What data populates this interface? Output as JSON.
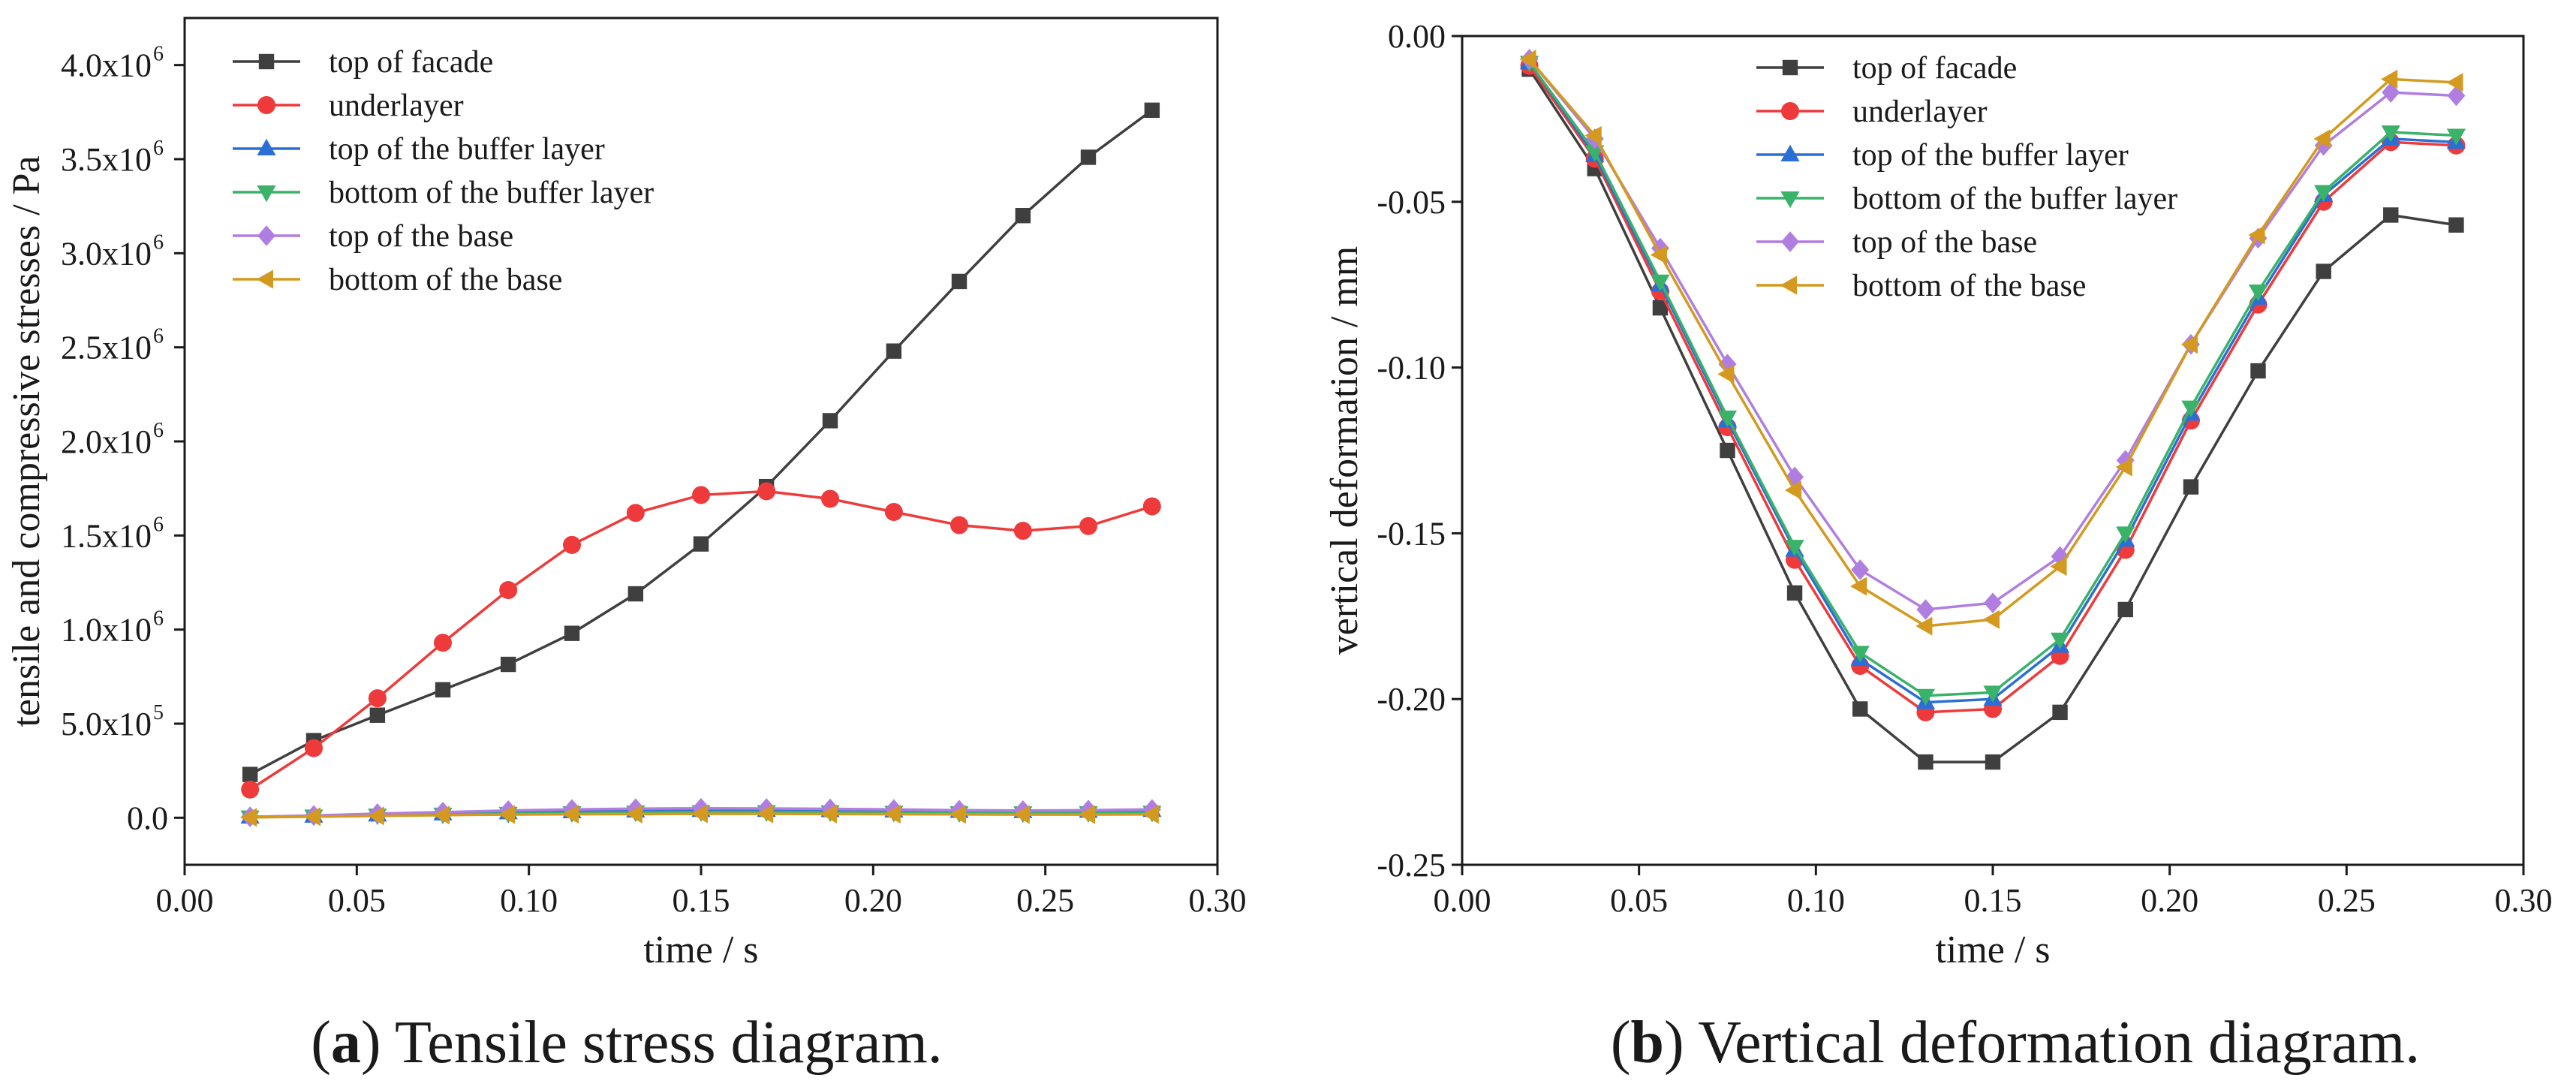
{
  "chart_data": [
    {
      "type": "line",
      "title": "",
      "xlabel": "time / s",
      "ylabel": "tensile and compressive stresses / Pa",
      "xlim": [
        0.0,
        0.3
      ],
      "ylim": [
        -250000,
        4250000
      ],
      "x_ticks": [
        {
          "value": 0.0,
          "label": "0.00"
        },
        {
          "value": 0.05,
          "label": "0.05"
        },
        {
          "value": 0.1,
          "label": "0.10"
        },
        {
          "value": 0.15,
          "label": "0.15"
        },
        {
          "value": 0.2,
          "label": "0.20"
        },
        {
          "value": 0.25,
          "label": "0.25"
        },
        {
          "value": 0.3,
          "label": "0.30"
        }
      ],
      "y_ticks": [
        {
          "value": 0,
          "label": "0.0",
          "exp": ""
        },
        {
          "value": 500000,
          "label": "5.0x10",
          "exp": "5"
        },
        {
          "value": 1000000,
          "label": "1.0x10",
          "exp": "6"
        },
        {
          "value": 1500000,
          "label": "1.5x10",
          "exp": "6"
        },
        {
          "value": 2000000,
          "label": "2.0x10",
          "exp": "6"
        },
        {
          "value": 2500000,
          "label": "2.5x10",
          "exp": "6"
        },
        {
          "value": 3000000,
          "label": "3.0x10",
          "exp": "6"
        },
        {
          "value": 3500000,
          "label": "3.5x10",
          "exp": "6"
        },
        {
          "value": 4000000,
          "label": "4.0x10",
          "exp": "6"
        }
      ],
      "x": [
        0.019,
        0.0375,
        0.056,
        0.075,
        0.094,
        0.1125,
        0.131,
        0.15,
        0.169,
        0.1875,
        0.206,
        0.225,
        0.2435,
        0.2625,
        0.281
      ],
      "legend_position": "top-left",
      "series": [
        {
          "name": "top of facade",
          "color": "#3f3f3f",
          "marker": "square",
          "values": [
            230000,
            410000,
            545000,
            680000,
            815000,
            980000,
            1190000,
            1455000,
            1760000,
            2110000,
            2480000,
            2850000,
            3200000,
            3510000,
            3760000
          ]
        },
        {
          "name": "underlayer",
          "color": "#ee3a3a",
          "marker": "circle",
          "values": [
            150000,
            370000,
            635000,
            930000,
            1210000,
            1450000,
            1620000,
            1715000,
            1735000,
            1695000,
            1625000,
            1555000,
            1525000,
            1550000,
            1655000
          ]
        },
        {
          "name": "top of the buffer layer",
          "color": "#2b6fd6",
          "marker": "triangle-up",
          "values": [
            5000,
            10000,
            16000,
            22000,
            28000,
            33000,
            37000,
            40000,
            40000,
            39000,
            37000,
            35000,
            34000,
            36000,
            40000
          ]
        },
        {
          "name": "bottom of the buffer layer",
          "color": "#3ab26a",
          "marker": "triangle-down",
          "values": [
            3000,
            8000,
            13000,
            18000,
            22000,
            26000,
            29000,
            31000,
            31000,
            30000,
            28000,
            26000,
            25000,
            26000,
            28000
          ]
        },
        {
          "name": "top of the base",
          "color": "#b07ee0",
          "marker": "diamond",
          "values": [
            5000,
            12000,
            22000,
            30000,
            38000,
            44000,
            48000,
            50000,
            49000,
            47000,
            44000,
            40000,
            38000,
            40000,
            44000
          ]
        },
        {
          "name": "bottom of the base",
          "color": "#d39a1f",
          "marker": "triangle-left",
          "values": [
            2000,
            6000,
            10000,
            14000,
            17000,
            19000,
            20000,
            21000,
            21000,
            20000,
            19000,
            18000,
            17000,
            17000,
            18000
          ]
        }
      ],
      "caption": {
        "letter": "a",
        "text": " Tensile stress diagram."
      }
    },
    {
      "type": "line",
      "title": "",
      "xlabel": "time / s",
      "ylabel": "vertical deformation / mm",
      "xlim": [
        0.0,
        0.3
      ],
      "ylim": [
        -0.25,
        0.0
      ],
      "x_ticks": [
        {
          "value": 0.0,
          "label": "0.00"
        },
        {
          "value": 0.05,
          "label": "0.05"
        },
        {
          "value": 0.1,
          "label": "0.10"
        },
        {
          "value": 0.15,
          "label": "0.15"
        },
        {
          "value": 0.2,
          "label": "0.20"
        },
        {
          "value": 0.25,
          "label": "0.25"
        },
        {
          "value": 0.3,
          "label": "0.30"
        }
      ],
      "y_ticks": [
        {
          "value": 0.0,
          "label": "0.00",
          "exp": ""
        },
        {
          "value": -0.05,
          "label": "-0.05",
          "exp": ""
        },
        {
          "value": -0.1,
          "label": "-0.10",
          "exp": ""
        },
        {
          "value": -0.15,
          "label": "-0.15",
          "exp": ""
        },
        {
          "value": -0.2,
          "label": "-0.20",
          "exp": ""
        },
        {
          "value": -0.25,
          "label": "-0.25",
          "exp": ""
        }
      ],
      "x": [
        0.019,
        0.0375,
        0.056,
        0.075,
        0.094,
        0.1125,
        0.131,
        0.15,
        0.169,
        0.1875,
        0.206,
        0.225,
        0.2435,
        0.2625,
        0.281
      ],
      "legend_position": "top-center",
      "series": [
        {
          "name": "top of facade",
          "color": "#3f3f3f",
          "marker": "square",
          "values": [
            -0.01,
            -0.04,
            -0.082,
            -0.125,
            -0.168,
            -0.203,
            -0.219,
            -0.219,
            -0.204,
            -0.173,
            -0.136,
            -0.101,
            -0.071,
            -0.054,
            -0.057
          ]
        },
        {
          "name": "underlayer",
          "color": "#ee3a3a",
          "marker": "circle",
          "values": [
            -0.009,
            -0.037,
            -0.077,
            -0.118,
            -0.158,
            -0.19,
            -0.204,
            -0.203,
            -0.187,
            -0.155,
            -0.116,
            -0.081,
            -0.05,
            -0.032,
            -0.033
          ]
        },
        {
          "name": "top of the buffer layer",
          "color": "#2b6fd6",
          "marker": "triangle-up",
          "values": [
            -0.008,
            -0.036,
            -0.075,
            -0.116,
            -0.155,
            -0.188,
            -0.201,
            -0.2,
            -0.184,
            -0.152,
            -0.114,
            -0.079,
            -0.048,
            -0.031,
            -0.032
          ]
        },
        {
          "name": "bottom of the buffer layer",
          "color": "#3ab26a",
          "marker": "triangle-down",
          "values": [
            -0.008,
            -0.035,
            -0.074,
            -0.115,
            -0.154,
            -0.186,
            -0.199,
            -0.198,
            -0.182,
            -0.15,
            -0.112,
            -0.077,
            -0.047,
            -0.029,
            -0.03
          ]
        },
        {
          "name": "top of the base",
          "color": "#b07ee0",
          "marker": "diamond",
          "values": [
            -0.007,
            -0.031,
            -0.064,
            -0.099,
            -0.133,
            -0.161,
            -0.173,
            -0.171,
            -0.157,
            -0.128,
            -0.093,
            -0.061,
            -0.033,
            -0.017,
            -0.018
          ]
        },
        {
          "name": "bottom of the base",
          "color": "#d39a1f",
          "marker": "triangle-left",
          "values": [
            -0.007,
            -0.03,
            -0.066,
            -0.102,
            -0.137,
            -0.166,
            -0.178,
            -0.176,
            -0.16,
            -0.13,
            -0.093,
            -0.06,
            -0.031,
            -0.013,
            -0.014
          ]
        }
      ],
      "caption": {
        "letter": "b",
        "text": " Vertical deformation diagram."
      }
    }
  ]
}
